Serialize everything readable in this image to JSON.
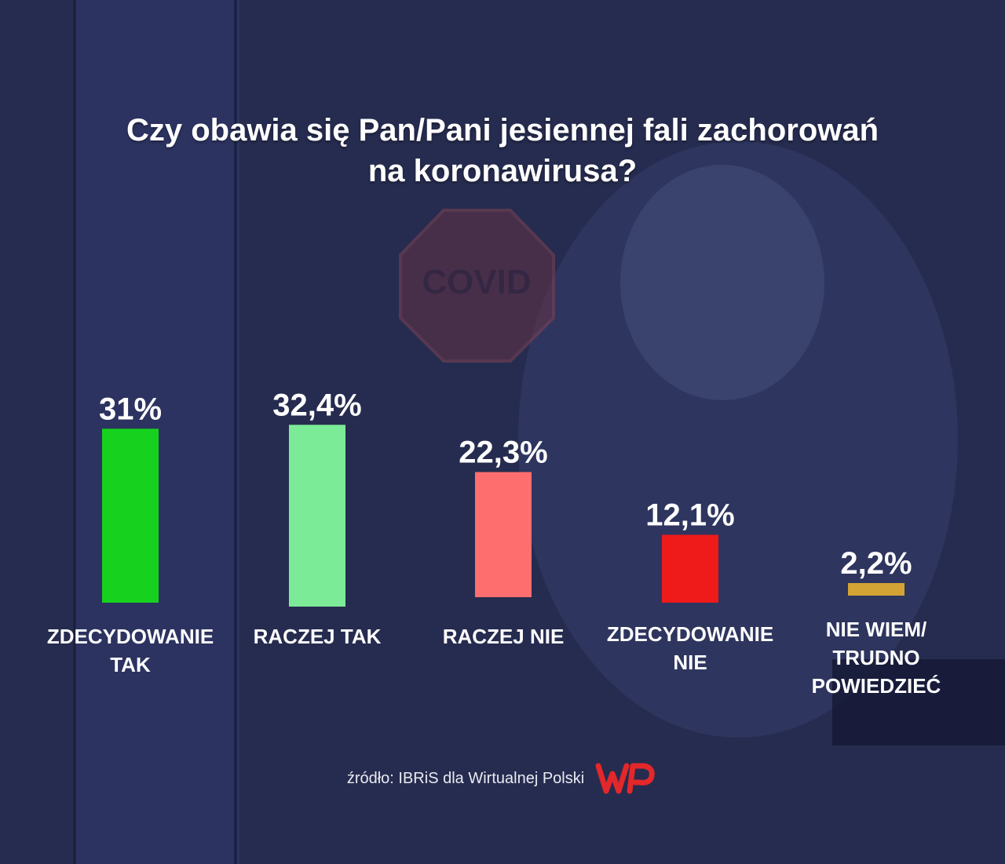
{
  "title_lines": [
    "Czy obawia się Pan/Pani jesiennej fali zachorowań",
    "na koronawirusa?"
  ],
  "background_sign_text": "COVID",
  "source": "źródło: IBRiS dla Wirtualnej Polski",
  "logo_text": "WP",
  "colors": {
    "background": "#262c4f",
    "text": "#ffffff",
    "logo": "#e3272a"
  },
  "chart_data": {
    "type": "bar",
    "title": "Czy obawia się Pan/Pani jesiennej fali zachorowań na koronawirusa?",
    "categories": [
      "ZDECYDOWANIE\nTAK",
      "RACZEJ TAK",
      "RACZEJ NIE",
      "ZDECYDOWANIE\nNIE",
      "NIE WIEM/\nTRUDNO POWIEDZIEĆ"
    ],
    "values": [
      31,
      32.4,
      22.3,
      12.1,
      2.2
    ],
    "value_labels": [
      "31%",
      "32,4%",
      "22,3%",
      "12,1%",
      "2,2%"
    ],
    "colors": [
      "#16d21e",
      "#7ceb98",
      "#ff6e6e",
      "#ef1a1a",
      "#d4a335"
    ],
    "unit": "%",
    "grid": false,
    "legend": "none"
  }
}
